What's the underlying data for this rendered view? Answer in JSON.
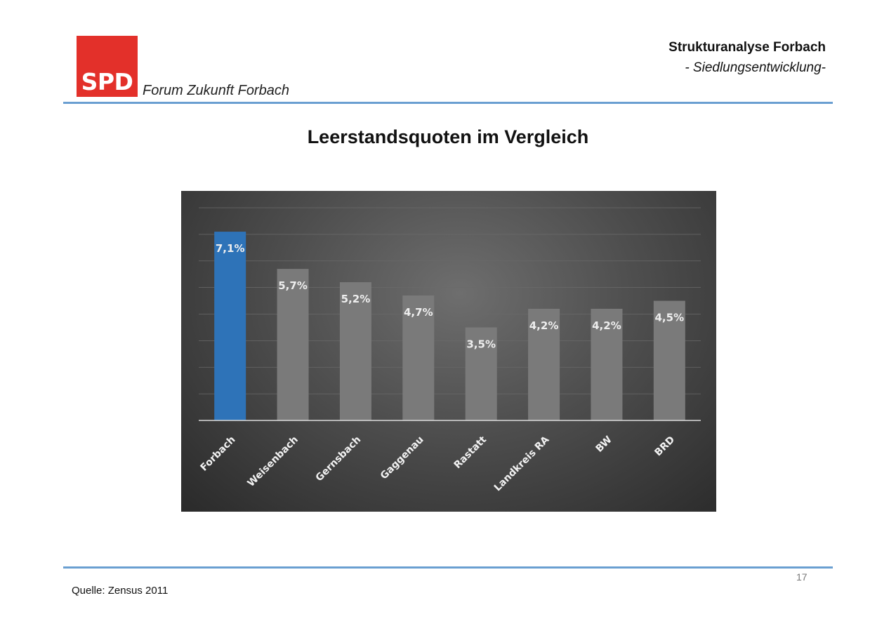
{
  "header": {
    "logo_text": "SPD",
    "subtitle_brand": "Forum Zukunft Forbach",
    "title": "Strukturanalyse Forbach",
    "subtitle": "- Siedlungsentwicklung-"
  },
  "slide": {
    "title": "Leerstandsquoten im Vergleich",
    "source": "Quelle: Zensus 2011",
    "page_number": "17"
  },
  "colors": {
    "brand_red": "#e3302a",
    "highlight_bar": "#2e73b8",
    "other_bars": "#7a7a7a",
    "rule": "#6a9fd1"
  },
  "chart_data": {
    "type": "bar",
    "title": "",
    "xlabel": "",
    "ylabel": "",
    "categories": [
      "Forbach",
      "Weisenbach",
      "Gernsbach",
      "Gaggenau",
      "Rastatt",
      "Landkreis RA",
      "BW",
      "BRD"
    ],
    "values": [
      7.1,
      5.7,
      5.2,
      4.7,
      3.5,
      4.2,
      4.2,
      4.5
    ],
    "labels": [
      "7,1%",
      "5,7%",
      "5,2%",
      "4,7%",
      "3,5%",
      "4,2%",
      "4,2%",
      "4,5%"
    ],
    "highlight_index": 0,
    "ylim": [
      0,
      8
    ],
    "grid": true,
    "legend": false
  }
}
